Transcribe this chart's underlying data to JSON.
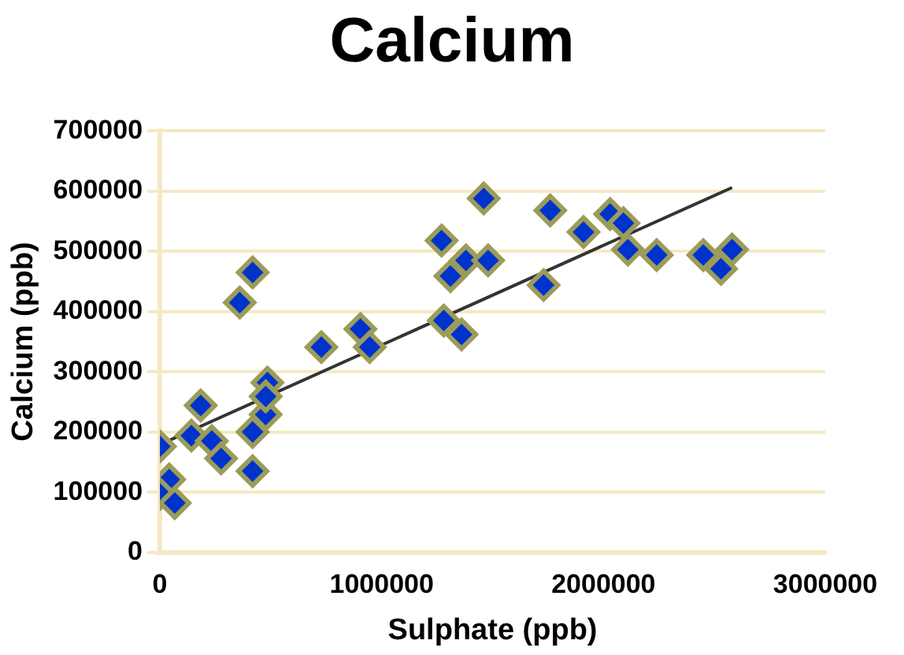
{
  "chart_data": {
    "type": "scatter",
    "title": "Calcium",
    "xlabel": "Sulphate (ppb)",
    "ylabel": "Calcium (ppb)",
    "xlim": [
      0,
      3000000
    ],
    "xticks": [
      0,
      1000000,
      2000000,
      3000000
    ],
    "ylim": [
      0,
      700000
    ],
    "yticks": [
      0,
      100000,
      200000,
      300000,
      400000,
      500000,
      600000,
      700000
    ],
    "grid": "y",
    "legend": false,
    "marker": "diamond",
    "series": [
      {
        "type": "scatter",
        "color": "#0033cc",
        "x": [
          0,
          42000,
          0,
          67000,
          142000,
          184000,
          234000,
          276000,
          418000,
          418000,
          477000,
          485000,
          477000,
          360000,
          418000,
          728000,
          904000,
          946000,
          1270000,
          1310000,
          1380000,
          1480000,
          1460000,
          1280000,
          1360000,
          1730000,
          1760000,
          1910000,
          2030000,
          2090000,
          2110000,
          2240000,
          2450000,
          2580000,
          2530000
        ],
        "values": [
          176000,
          121000,
          97000,
          82000,
          194000,
          244000,
          185000,
          156000,
          135000,
          200000,
          229000,
          282000,
          259000,
          415000,
          465000,
          341000,
          371000,
          341000,
          518000,
          459000,
          485000,
          485000,
          588000,
          385000,
          362000,
          444000,
          568000,
          532000,
          562000,
          547000,
          503000,
          494000,
          494000,
          503000,
          471000
        ]
      },
      {
        "type": "line",
        "color": "#333333",
        "x": [
          0,
          2580000
        ],
        "values": [
          179000,
          606000
        ],
        "marker": "none"
      }
    ]
  }
}
